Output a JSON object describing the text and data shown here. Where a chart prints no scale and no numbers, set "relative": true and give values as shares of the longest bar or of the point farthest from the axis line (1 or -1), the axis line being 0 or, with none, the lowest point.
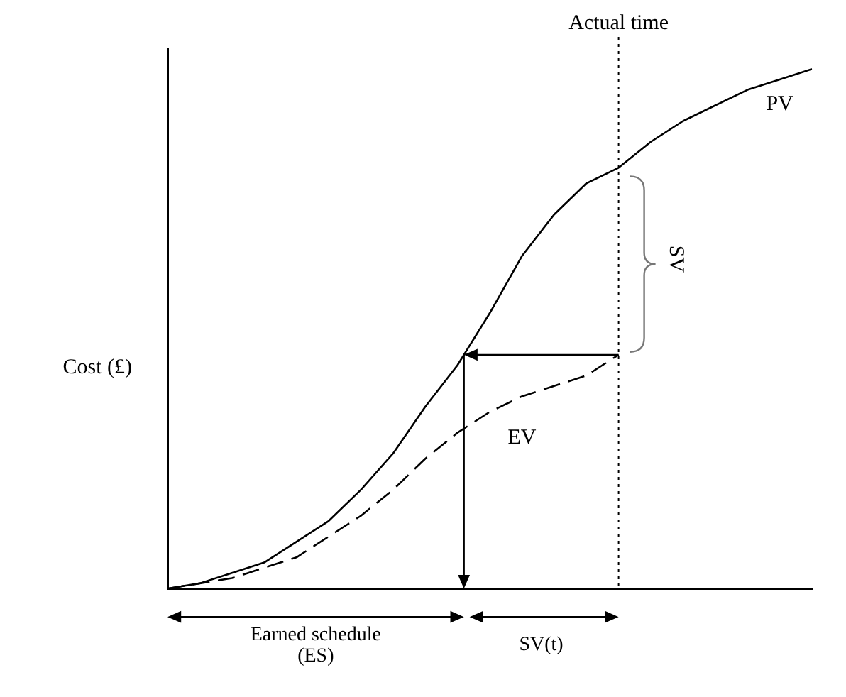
{
  "chart_data": {
    "type": "line",
    "relative": true,
    "ylabel": "Cost (£)",
    "categories": [
      null,
      null,
      null,
      null,
      null,
      null,
      null,
      null,
      null,
      null,
      null,
      null,
      null,
      null,
      null,
      null,
      null,
      null,
      null,
      null,
      null
    ],
    "grid": false,
    "legend": false,
    "marker": "none",
    "series": [
      {
        "name": "PV",
        "color": "#000000",
        "line_style": "solid",
        "values": [
          0,
          0.01,
          0.03,
          0.05,
          0.09,
          0.13,
          0.19,
          0.26,
          0.35,
          0.43,
          0.53,
          0.64,
          0.72,
          0.78,
          0.81,
          0.86,
          0.9,
          0.93,
          0.96,
          0.98,
          1
        ]
      },
      {
        "name": "EV",
        "color": "#000000",
        "line_style": "dashed",
        "values": [
          0,
          0.01,
          0.02,
          0.04,
          0.06,
          0.1,
          0.14,
          0.19,
          0.25,
          0.3,
          0.34,
          0.37,
          0.39,
          0.41,
          0.45,
          null,
          null,
          null,
          null,
          null,
          null
        ]
      }
    ],
    "annotations": [
      "Earned schedule (ES)",
      "SV(t)",
      "SV",
      "Actual time"
    ]
  }
}
